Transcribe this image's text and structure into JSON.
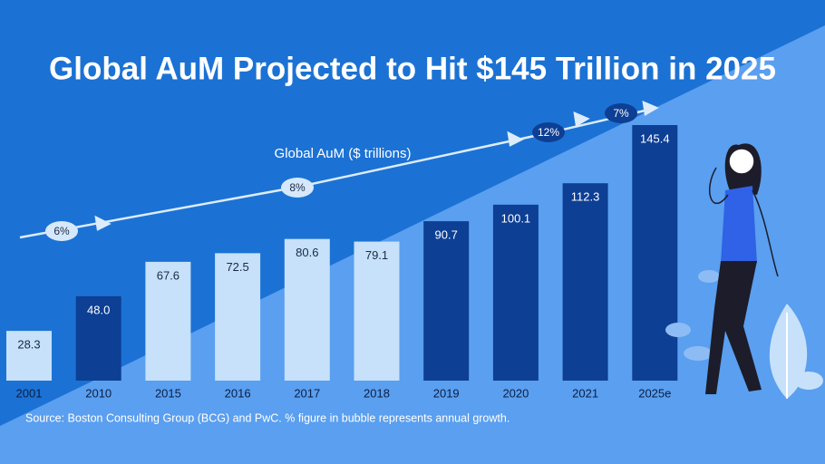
{
  "chart_data": {
    "type": "bar",
    "title": "Global AuM Projected to Hit $145 Trillion in 2025",
    "line_label": "Global AuM ($ trillions)",
    "annotations": [
      "6%",
      "8%",
      "12%",
      "7%"
    ],
    "source": "Source: Boston Consulting Group (BCG) and PwC. % figure in bubble represents annual growth.",
    "categories": [
      "2001",
      "2010",
      "2015",
      "2016",
      "2017",
      "2018",
      "2019",
      "2020",
      "2021",
      "2025e"
    ],
    "values": [
      28.3,
      48.0,
      67.6,
      72.5,
      80.6,
      79.1,
      90.7,
      100.1,
      112.3,
      145.4
    ],
    "value_labels": [
      "28.3",
      "48.0",
      "67.6",
      "72.5",
      "80.6",
      "79.1",
      "90.7",
      "100.1",
      "112.3",
      "145.4"
    ],
    "colors": [
      "#c6e1f9",
      "#0d3f94",
      "#c6e1f9",
      "#c6e1f9",
      "#c6e1f9",
      "#c6e1f9",
      "#0d3f94",
      "#0d3f94",
      "#0d3f94",
      "#0d3f94"
    ]
  }
}
